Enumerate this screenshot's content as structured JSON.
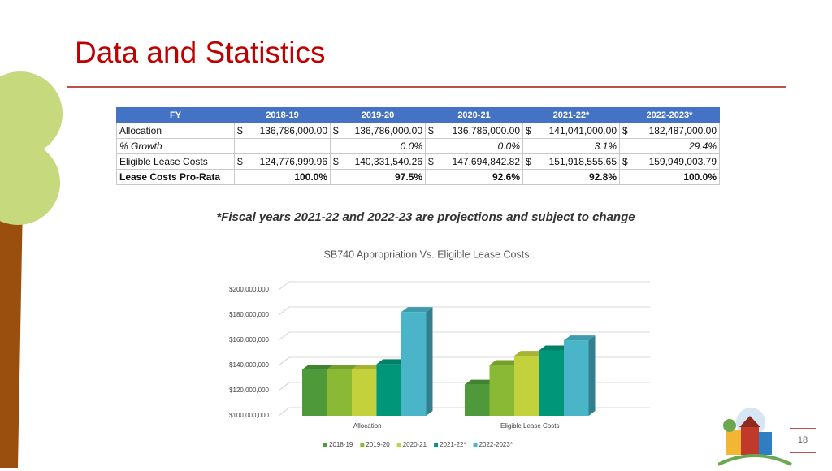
{
  "header": {
    "title": "Data and Statistics"
  },
  "table": {
    "columns": [
      "FY",
      "2018-19",
      "2019-20",
      "2020-21",
      "2021-22*",
      "2022-2023*"
    ],
    "rows": [
      [
        "Allocation",
        [
          "$",
          "136,786,000.00"
        ],
        [
          "$",
          "136,786,000.00"
        ],
        [
          "$",
          "136,786,000.00"
        ],
        [
          "$",
          "141,041,000.00"
        ],
        [
          "$",
          "182,487,000.00"
        ]
      ],
      [
        "% Growth",
        null,
        "0.0%",
        "0.0%",
        "3.1%",
        "29.4%"
      ],
      [
        "Eligible Lease Costs",
        [
          "$",
          "124,776,999.96"
        ],
        [
          "$",
          "140,331,540.26"
        ],
        [
          "$",
          "147,694,842.82"
        ],
        [
          "$",
          "151,918,555.65"
        ],
        [
          "$",
          "159,949,003.79"
        ]
      ],
      [
        "Lease Costs Pro-Rata",
        "100.0%",
        "97.5%",
        "92.6%",
        "92.8%",
        "100.0%"
      ]
    ]
  },
  "note": "*Fiscal years 2021-22 and 2022-23 are projections and subject to change",
  "chart_data": {
    "type": "bar",
    "style": "3d",
    "title": "SB740 Appropriation Vs. Eligible Lease Costs",
    "categories": [
      "Allocation",
      "Eligible Lease Costs"
    ],
    "series": [
      {
        "name": "2018-19",
        "color": "#4e9a3a",
        "values": [
          136786000,
          124776999.96
        ]
      },
      {
        "name": "2019-20",
        "color": "#8aba35",
        "values": [
          136786000,
          140331540.26
        ]
      },
      {
        "name": "2020-21",
        "color": "#c3d23c",
        "values": [
          136786000,
          147694842.82
        ]
      },
      {
        "name": "2021-22*",
        "color": "#00967a",
        "values": [
          141041000,
          151918555.65
        ]
      },
      {
        "name": "2022-2023*",
        "color": "#4ab5c9",
        "values": [
          182487000,
          159949003.79
        ]
      }
    ],
    "ylim": [
      100000000,
      200000000
    ],
    "yticks": [
      {
        "value": 100000000,
        "label": "$100,000,000"
      },
      {
        "value": 120000000,
        "label": "$120,000,000"
      },
      {
        "value": 140000000,
        "label": "$140,000,000"
      },
      {
        "value": 160000000,
        "label": "$160,000,000"
      },
      {
        "value": 180000000,
        "label": "$180,000,000"
      },
      {
        "value": 200000000,
        "label": "$200,000,000"
      }
    ],
    "grid": true,
    "legend": "bottom"
  },
  "page_number": "18"
}
